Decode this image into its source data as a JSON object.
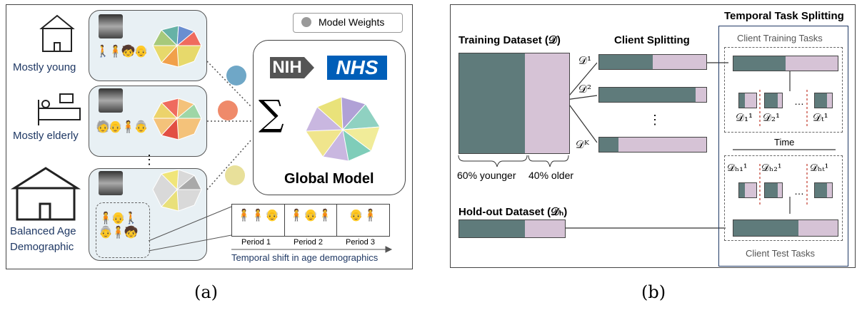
{
  "panel_a": {
    "caption": "(a)",
    "legend_label": "Model Weights",
    "clients": [
      {
        "label": "Mostly young"
      },
      {
        "label": "Mostly elderly"
      },
      {
        "label_line1": "Balanced Age",
        "label_line2": "Demographic"
      }
    ],
    "logos": {
      "nih": "NIH",
      "nhs": "NHS"
    },
    "sum_symbol": "∑",
    "global_label": "Global Model",
    "ellipsis": "⋮",
    "periods": [
      "Period 1",
      "Period 2",
      "Period 3"
    ],
    "shift_label": "Temporal shift in age demographics"
  },
  "panel_b": {
    "caption": "(b)",
    "training_title": "Training Dataset (𝒟)",
    "younger_label": "60% younger",
    "older_label": "40% older",
    "younger_fraction": 0.6,
    "holdout_title": "Hold-out Dataset (𝒟ₕ)",
    "client_splitting_title": "Client Splitting",
    "client_labels": [
      "𝒟¹",
      "𝒟²",
      "𝒟ᴷ"
    ],
    "client_dots": "⋮",
    "temporal_title": "Temporal Task Splitting",
    "training_tasks_label": "Client Training Tasks",
    "test_tasks_label": "Client Test Tasks",
    "train_task_labels": [
      "𝒟₁¹",
      "𝒟₂¹",
      "𝒟ₜ¹"
    ],
    "test_task_labels": [
      "𝒟ₕ₁¹",
      "𝒟ₕ₂¹",
      "𝒟ₕₜ¹"
    ],
    "task_ellipsis": "…",
    "time_label": "Time"
  },
  "colors": {
    "teal": "#5f7b7b",
    "lilac": "#d6c3d6",
    "navy": "#1f3864",
    "nhs_blue": "#005eb8",
    "nih_gray": "#555555"
  }
}
